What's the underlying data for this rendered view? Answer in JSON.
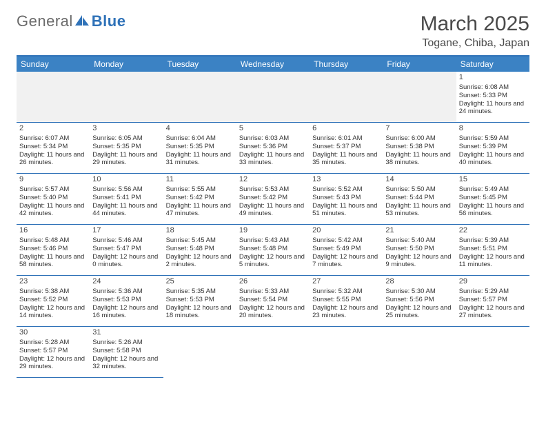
{
  "brand": {
    "part1": "General",
    "part2": "Blue"
  },
  "title": {
    "month": "March 2025",
    "location": "Togane, Chiba, Japan"
  },
  "colors": {
    "headerBg": "#3b82c4",
    "borderBlue": "#2f72b8",
    "blankBg": "#f1f1f1",
    "text": "#333333",
    "titleText": "#4a4a4a"
  },
  "weekdays": [
    "Sunday",
    "Monday",
    "Tuesday",
    "Wednesday",
    "Thursday",
    "Friday",
    "Saturday"
  ],
  "layout": {
    "cols": 7,
    "rows": 6,
    "leadingBlanks": 6,
    "cellFontSize": 9.5,
    "headerFontSize": 12,
    "monthFontSize": 30,
    "locFontSize": 16
  },
  "days": [
    {
      "n": 1,
      "sr": "6:08 AM",
      "ss": "5:33 PM",
      "dl": "11 hours and 24 minutes."
    },
    {
      "n": 2,
      "sr": "6:07 AM",
      "ss": "5:34 PM",
      "dl": "11 hours and 26 minutes."
    },
    {
      "n": 3,
      "sr": "6:05 AM",
      "ss": "5:35 PM",
      "dl": "11 hours and 29 minutes."
    },
    {
      "n": 4,
      "sr": "6:04 AM",
      "ss": "5:35 PM",
      "dl": "11 hours and 31 minutes."
    },
    {
      "n": 5,
      "sr": "6:03 AM",
      "ss": "5:36 PM",
      "dl": "11 hours and 33 minutes."
    },
    {
      "n": 6,
      "sr": "6:01 AM",
      "ss": "5:37 PM",
      "dl": "11 hours and 35 minutes."
    },
    {
      "n": 7,
      "sr": "6:00 AM",
      "ss": "5:38 PM",
      "dl": "11 hours and 38 minutes."
    },
    {
      "n": 8,
      "sr": "5:59 AM",
      "ss": "5:39 PM",
      "dl": "11 hours and 40 minutes."
    },
    {
      "n": 9,
      "sr": "5:57 AM",
      "ss": "5:40 PM",
      "dl": "11 hours and 42 minutes."
    },
    {
      "n": 10,
      "sr": "5:56 AM",
      "ss": "5:41 PM",
      "dl": "11 hours and 44 minutes."
    },
    {
      "n": 11,
      "sr": "5:55 AM",
      "ss": "5:42 PM",
      "dl": "11 hours and 47 minutes."
    },
    {
      "n": 12,
      "sr": "5:53 AM",
      "ss": "5:42 PM",
      "dl": "11 hours and 49 minutes."
    },
    {
      "n": 13,
      "sr": "5:52 AM",
      "ss": "5:43 PM",
      "dl": "11 hours and 51 minutes."
    },
    {
      "n": 14,
      "sr": "5:50 AM",
      "ss": "5:44 PM",
      "dl": "11 hours and 53 minutes."
    },
    {
      "n": 15,
      "sr": "5:49 AM",
      "ss": "5:45 PM",
      "dl": "11 hours and 56 minutes."
    },
    {
      "n": 16,
      "sr": "5:48 AM",
      "ss": "5:46 PM",
      "dl": "11 hours and 58 minutes."
    },
    {
      "n": 17,
      "sr": "5:46 AM",
      "ss": "5:47 PM",
      "dl": "12 hours and 0 minutes."
    },
    {
      "n": 18,
      "sr": "5:45 AM",
      "ss": "5:48 PM",
      "dl": "12 hours and 2 minutes."
    },
    {
      "n": 19,
      "sr": "5:43 AM",
      "ss": "5:48 PM",
      "dl": "12 hours and 5 minutes."
    },
    {
      "n": 20,
      "sr": "5:42 AM",
      "ss": "5:49 PM",
      "dl": "12 hours and 7 minutes."
    },
    {
      "n": 21,
      "sr": "5:40 AM",
      "ss": "5:50 PM",
      "dl": "12 hours and 9 minutes."
    },
    {
      "n": 22,
      "sr": "5:39 AM",
      "ss": "5:51 PM",
      "dl": "12 hours and 11 minutes."
    },
    {
      "n": 23,
      "sr": "5:38 AM",
      "ss": "5:52 PM",
      "dl": "12 hours and 14 minutes."
    },
    {
      "n": 24,
      "sr": "5:36 AM",
      "ss": "5:53 PM",
      "dl": "12 hours and 16 minutes."
    },
    {
      "n": 25,
      "sr": "5:35 AM",
      "ss": "5:53 PM",
      "dl": "12 hours and 18 minutes."
    },
    {
      "n": 26,
      "sr": "5:33 AM",
      "ss": "5:54 PM",
      "dl": "12 hours and 20 minutes."
    },
    {
      "n": 27,
      "sr": "5:32 AM",
      "ss": "5:55 PM",
      "dl": "12 hours and 23 minutes."
    },
    {
      "n": 28,
      "sr": "5:30 AM",
      "ss": "5:56 PM",
      "dl": "12 hours and 25 minutes."
    },
    {
      "n": 29,
      "sr": "5:29 AM",
      "ss": "5:57 PM",
      "dl": "12 hours and 27 minutes."
    },
    {
      "n": 30,
      "sr": "5:28 AM",
      "ss": "5:57 PM",
      "dl": "12 hours and 29 minutes."
    },
    {
      "n": 31,
      "sr": "5:26 AM",
      "ss": "5:58 PM",
      "dl": "12 hours and 32 minutes."
    }
  ],
  "labels": {
    "sunrise": "Sunrise: ",
    "sunset": "Sunset: ",
    "daylight": "Daylight: "
  }
}
